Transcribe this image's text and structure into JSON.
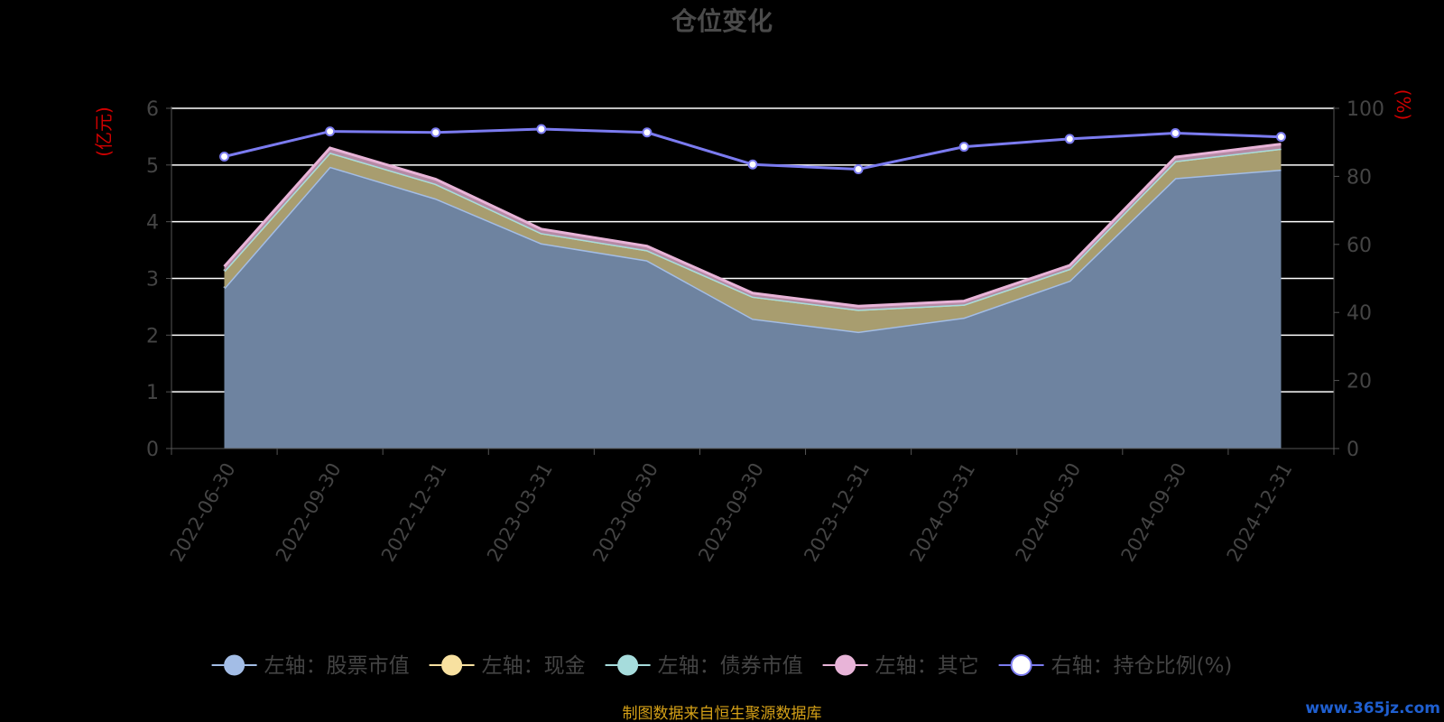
{
  "chart_data": {
    "type": "area",
    "title": "仓位变化",
    "categories": [
      "2022-06-30",
      "2022-09-30",
      "2022-12-31",
      "2023-03-31",
      "2023-06-30",
      "2023-09-30",
      "2023-12-31",
      "2024-03-31",
      "2024-06-30",
      "2024-09-30",
      "2024-12-31"
    ],
    "left_axis": {
      "unit": "(亿元)",
      "range": [
        0,
        6
      ],
      "ticks": [
        "0",
        "1",
        "2",
        "3",
        "4",
        "5",
        "6"
      ]
    },
    "right_axis": {
      "unit": "(%)",
      "range": [
        0,
        100
      ],
      "ticks": [
        "0",
        "20",
        "40",
        "60",
        "80",
        "100"
      ]
    },
    "series": [
      {
        "name": "左轴：股票市值",
        "axis": "left",
        "stack": true,
        "color": "#a3bde6",
        "fill": "#6e83a0",
        "values": [
          2.83,
          4.97,
          4.41,
          3.62,
          3.32,
          2.29,
          2.06,
          2.31,
          2.96,
          4.77,
          4.92
        ]
      },
      {
        "name": "左轴：现金",
        "axis": "left",
        "stack": true,
        "color": "#f8e1a0",
        "fill": "#a89d6f",
        "values": [
          0.3,
          0.25,
          0.26,
          0.18,
          0.18,
          0.39,
          0.39,
          0.23,
          0.21,
          0.3,
          0.37
        ]
      },
      {
        "name": "左轴：债券市值",
        "axis": "left",
        "stack": true,
        "color": "#a6dcdc",
        "fill": "#7fb0b0",
        "values": [
          0,
          0,
          0,
          0,
          0,
          0,
          0,
          0,
          0,
          0,
          0
        ]
      },
      {
        "name": "左轴：其它",
        "axis": "left",
        "stack": true,
        "color": "#e8b4d8",
        "fill": "#b58aa4",
        "values": [
          0.08,
          0.08,
          0.08,
          0.07,
          0.07,
          0.06,
          0.06,
          0.06,
          0.06,
          0.07,
          0.08
        ]
      },
      {
        "name": "右轴：持仓比例(%)",
        "axis": "right",
        "type": "line",
        "color": "#7b7bf0",
        "values": [
          85.8,
          93.2,
          92.9,
          93.9,
          92.9,
          83.5,
          82.1,
          88.7,
          91.0,
          92.7,
          91.6
        ]
      }
    ],
    "grid": true,
    "legend_position": "bottom"
  },
  "source_note": "制图数据来自恒生聚源数据库",
  "watermark": "www.365jz.com"
}
